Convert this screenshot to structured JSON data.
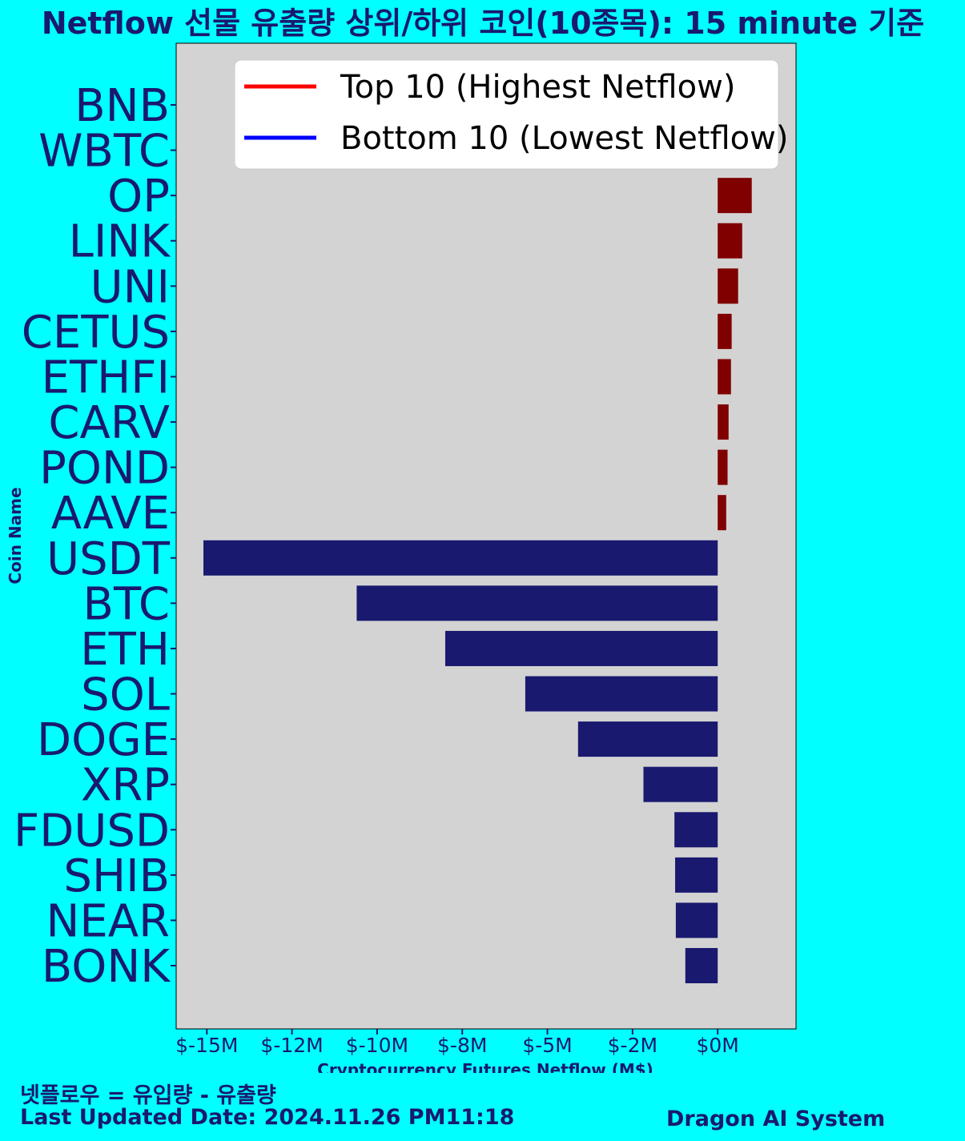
{
  "chart_data": {
    "type": "bar",
    "orientation": "horizontal",
    "title": "Netflow 선물 유출량 상위/하위 코인(10종목): 15 minute 기준",
    "xlabel": "Cryptocurrency Futures Netflow (M$)",
    "ylabel": "Coin Name",
    "x_tick_labels": [
      "$-15M",
      "$-12M",
      "$-10M",
      "$-8M",
      "$-5M",
      "$-2M",
      "$0M"
    ],
    "x_tick_values": [
      -15,
      -12.5,
      -10,
      -7.5,
      -5,
      -2.5,
      0
    ],
    "xlim": [
      -15.9,
      2.3
    ],
    "grid": false,
    "legend_position": "top",
    "legend": [
      {
        "label": "Top 10 (Highest Netflow)",
        "color": "#ff0000"
      },
      {
        "label": "Bottom 10 (Lowest Netflow)",
        "color": "#0000ff"
      }
    ],
    "categories": [
      "BNB",
      "WBTC",
      "OP",
      "LINK",
      "UNI",
      "CETUS",
      "ETHFI",
      "CARV",
      "POND",
      "AAVE",
      "USDT",
      "BTC",
      "ETH",
      "SOL",
      "DOGE",
      "XRP",
      "FDUSD",
      "SHIB",
      "NEAR",
      "BONK"
    ],
    "values": [
      0,
      0,
      1.0,
      0.72,
      0.6,
      0.41,
      0.39,
      0.32,
      0.29,
      0.25,
      -15.1,
      -10.6,
      -8.0,
      -5.65,
      -4.1,
      -2.18,
      -1.27,
      -1.25,
      -1.23,
      -0.95
    ],
    "bar_colors": {
      "top": "#800000",
      "bottom": "#191970"
    },
    "plot_background": "#d3d3d3"
  },
  "footer": {
    "formula": "넷플로우 = 유입량 - 유출량",
    "last_updated": "Last Updated Date: 2024.11.26 PM11:18",
    "brand": "Dragon AI System"
  },
  "colors": {
    "page_background": "#00ffff",
    "text": "#191970"
  }
}
